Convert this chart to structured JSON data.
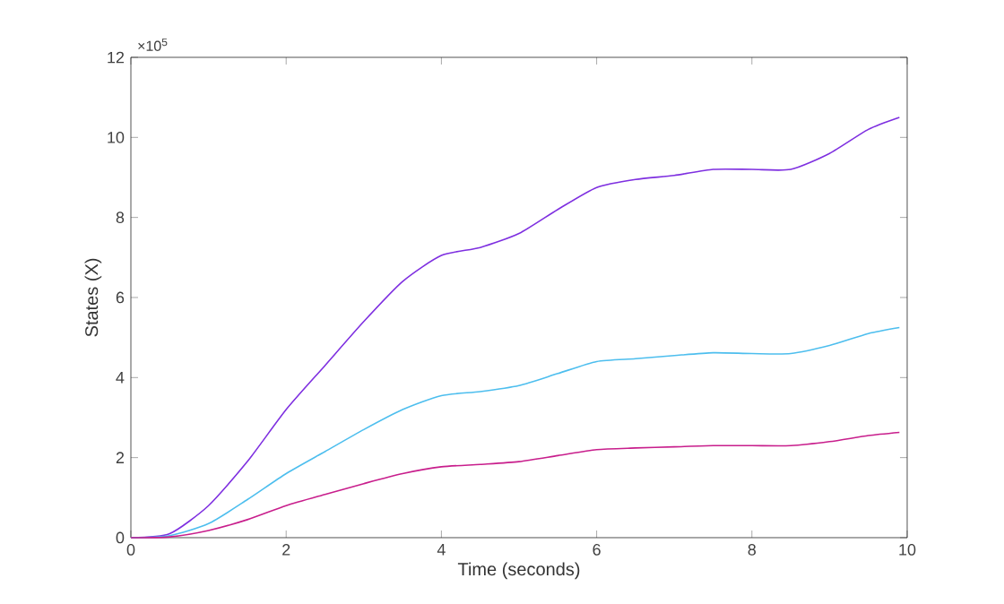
{
  "chart_data": {
    "type": "line",
    "xlabel": "Time (seconds)",
    "ylabel": "States (X)",
    "annotations": [
      "×10$^{5}$"
    ],
    "x": [
      0,
      0.5,
      1,
      1.5,
      2,
      2.5,
      3,
      3.5,
      4,
      4.5,
      5,
      5.5,
      6,
      6.5,
      7,
      7.5,
      8,
      8.5,
      9,
      9.5,
      9.9
    ],
    "series": [
      {
        "color": "#7e2fe0",
        "values": [
          0,
          0.1,
          0.8,
          1.9,
          3.2,
          4.3,
          5.4,
          6.4,
          7.05,
          7.25,
          7.6,
          8.2,
          8.75,
          8.95,
          9.05,
          9.2,
          9.2,
          9.2,
          9.6,
          10.2,
          10.5
        ]
      },
      {
        "color": "#4dbeee",
        "values": [
          0,
          0.05,
          0.35,
          0.95,
          1.6,
          2.15,
          2.7,
          3.2,
          3.55,
          3.65,
          3.8,
          4.1,
          4.4,
          4.47,
          4.55,
          4.62,
          4.6,
          4.6,
          4.8,
          5.1,
          5.25
        ]
      },
      {
        "color": "#c81e8c",
        "values": [
          0,
          0.02,
          0.18,
          0.45,
          0.8,
          1.08,
          1.35,
          1.6,
          1.77,
          1.83,
          1.9,
          2.05,
          2.2,
          2.24,
          2.27,
          2.3,
          2.3,
          2.3,
          2.4,
          2.55,
          2.63
        ]
      }
    ],
    "xlim": [
      0,
      10
    ],
    "ylim": [
      0,
      12
    ],
    "xticks": [
      0,
      2,
      4,
      6,
      8,
      10
    ],
    "yticks": [
      0,
      2,
      4,
      6,
      8,
      10,
      12
    ],
    "grid": false,
    "marker": "none",
    "line_style": "solid"
  }
}
